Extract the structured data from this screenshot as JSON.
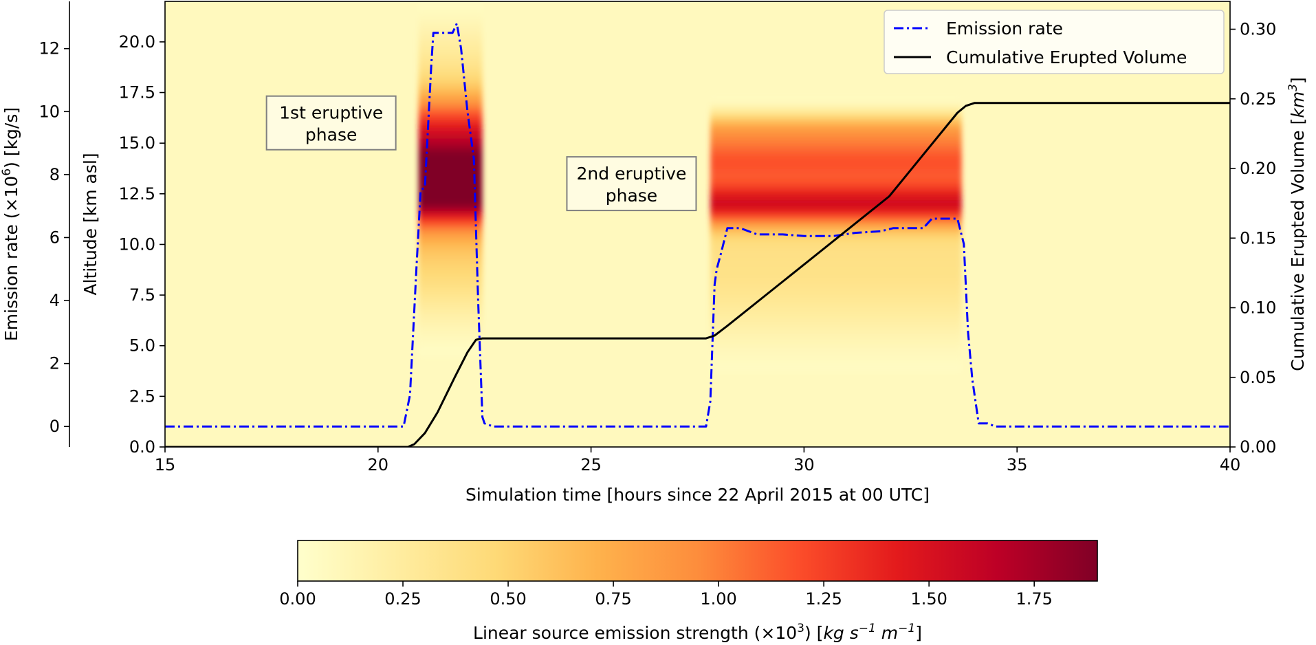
{
  "chart_data": {
    "type": "heatmap",
    "title": "",
    "xlabel": "Simulation time [hours since 22 April 2015 at 00 UTC]",
    "xlim": [
      15,
      40
    ],
    "x_ticks": [
      15,
      20,
      25,
      30,
      35,
      40
    ],
    "x_tick_labels": [
      "15",
      "20",
      "25",
      "30",
      "35",
      "40"
    ],
    "ylabel": "Altitude [km asl]",
    "ylim": [
      0,
      22
    ],
    "y_ticks": [
      0,
      2.5,
      5,
      7.5,
      10,
      12.5,
      15,
      17.5,
      20
    ],
    "y_tick_labels": [
      "0.0",
      "2.5",
      "5.0",
      "7.5",
      "10.0",
      "12.5",
      "15.0",
      "17.5",
      "20.0"
    ],
    "emission_axis": {
      "label_main": "Emission rate (×10",
      "label_sup": "6",
      "label_tail": ") [kg/s]",
      "lim": [
        -0.65,
        13.5
      ],
      "ticks": [
        0,
        2,
        4,
        6,
        8,
        10,
        12
      ],
      "tick_labels": [
        "0",
        "2",
        "4",
        "6",
        "8",
        "10",
        "12"
      ]
    },
    "volume_axis": {
      "label_main": "Cumulative Erupted Volume [",
      "label_unit": "km",
      "label_sup": "3",
      "label_tail": "]",
      "lim": [
        0,
        0.32
      ],
      "ticks": [
        0,
        0.05,
        0.1,
        0.15,
        0.2,
        0.25,
        0.3
      ],
      "tick_labels": [
        "0.00",
        "0.05",
        "0.10",
        "0.15",
        "0.20",
        "0.25",
        "0.30"
      ]
    },
    "series": [
      {
        "name": "Emission rate",
        "style": "dashdot",
        "color": "#0000ff",
        "axis": "emission",
        "points": [
          [
            15,
            0
          ],
          [
            20.6,
            0
          ],
          [
            20.75,
            1.0
          ],
          [
            20.9,
            5.0
          ],
          [
            21.0,
            7.5
          ],
          [
            21.1,
            7.6
          ],
          [
            21.25,
            11.5
          ],
          [
            21.3,
            12.5
          ],
          [
            21.6,
            12.5
          ],
          [
            21.75,
            12.5
          ],
          [
            21.85,
            12.8
          ],
          [
            21.95,
            12.0
          ],
          [
            22.1,
            10.0
          ],
          [
            22.25,
            8.5
          ],
          [
            22.35,
            4.0
          ],
          [
            22.45,
            0.3
          ],
          [
            22.5,
            0.1
          ],
          [
            22.7,
            0
          ],
          [
            27.7,
            0
          ],
          [
            27.8,
            0.8
          ],
          [
            27.9,
            4.5
          ],
          [
            27.95,
            5.0
          ],
          [
            28.05,
            5.5
          ],
          [
            28.2,
            6.3
          ],
          [
            28.5,
            6.3
          ],
          [
            28.7,
            6.2
          ],
          [
            28.9,
            6.1
          ],
          [
            29.5,
            6.1
          ],
          [
            30,
            6.05
          ],
          [
            30.7,
            6.05
          ],
          [
            31.2,
            6.15
          ],
          [
            31.8,
            6.2
          ],
          [
            32.1,
            6.3
          ],
          [
            32.5,
            6.3
          ],
          [
            32.8,
            6.3
          ],
          [
            33.0,
            6.6
          ],
          [
            33.5,
            6.6
          ],
          [
            33.6,
            6.6
          ],
          [
            33.75,
            5.8
          ],
          [
            33.85,
            3.0
          ],
          [
            33.95,
            1.5
          ],
          [
            34.1,
            0.1
          ],
          [
            34.3,
            0.1
          ],
          [
            34.5,
            0
          ],
          [
            40,
            0
          ]
        ]
      },
      {
        "name": "Cumulative Erupted Volume",
        "style": "solid",
        "color": "#000000",
        "axis": "volume",
        "points": [
          [
            15,
            0
          ],
          [
            20.7,
            0
          ],
          [
            20.85,
            0.002
          ],
          [
            21.1,
            0.01
          ],
          [
            21.4,
            0.025
          ],
          [
            21.8,
            0.05
          ],
          [
            22.1,
            0.068
          ],
          [
            22.3,
            0.077
          ],
          [
            22.45,
            0.078
          ],
          [
            27.7,
            0.078
          ],
          [
            27.9,
            0.08
          ],
          [
            28.2,
            0.087
          ],
          [
            30,
            0.131
          ],
          [
            32,
            0.18
          ],
          [
            33.6,
            0.24
          ],
          [
            33.8,
            0.245
          ],
          [
            34.0,
            0.247
          ],
          [
            40,
            0.247
          ]
        ]
      }
    ],
    "heatmap": {
      "colorbar_label_main": "Linear source emission strength (×10",
      "colorbar_label_sup": "3",
      "colorbar_label_tail": ") [",
      "colorbar_label_unit": "kg s",
      "colorbar_label_unit_sup1": "−1",
      "colorbar_label_unit_mid": " m",
      "colorbar_label_unit_sup2": "−1",
      "colorbar_label_end": "]",
      "colorbar_range": [
        0,
        1.9
      ],
      "colorbar_ticks": [
        0,
        0.25,
        0.5,
        0.75,
        1.0,
        1.25,
        1.5,
        1.75
      ],
      "colorbar_tick_labels": [
        "0.00",
        "0.25",
        "0.50",
        "0.75",
        "1.00",
        "1.25",
        "1.50",
        "1.75"
      ],
      "colormap": "YlOrRd",
      "phases": [
        {
          "t_start": 20.95,
          "t_end": 22.45,
          "bands": [
            {
              "y": 12.8,
              "sigma": 1.3,
              "strength": 1.9
            },
            {
              "y": 15.5,
              "sigma": 1.5,
              "strength": 1.3
            },
            {
              "y": 19.0,
              "sigma": 1.6,
              "strength": 0.25
            },
            {
              "y": 9.5,
              "sigma": 2.2,
              "strength": 0.5
            }
          ]
        },
        {
          "t_start": 27.8,
          "t_end": 33.7,
          "bands": [
            {
              "y": 14.2,
              "sigma": 1.0,
              "strength": 1.1
            },
            {
              "y": 12.0,
              "sigma": 0.8,
              "strength": 1.25
            },
            {
              "y": 15.8,
              "sigma": 0.6,
              "strength": 0.5
            },
            {
              "y": 9.5,
              "sigma": 2.2,
              "strength": 0.35
            },
            {
              "y": 6.5,
              "sigma": 1.8,
              "strength": 0.1
            }
          ]
        }
      ]
    },
    "legend_placement": "top-right",
    "grid": false,
    "annotations": [
      {
        "text": [
          "1st eruptive",
          "phase"
        ],
        "x": 18.9,
        "y": 16.0
      },
      {
        "text": [
          "2nd eruptive",
          "phase"
        ],
        "x": 25.95,
        "y": 13.0
      }
    ]
  }
}
